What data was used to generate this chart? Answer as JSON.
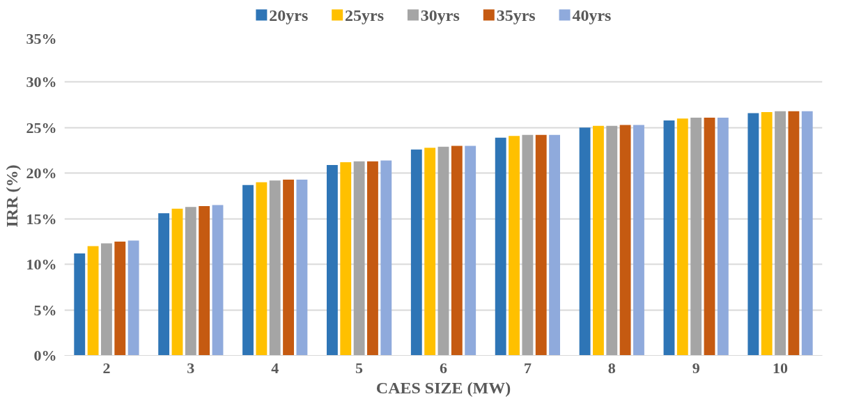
{
  "chart_data": {
    "type": "bar",
    "xlabel": "CAES SIZE (MW)",
    "ylabel": "IRR (%)",
    "categories": [
      "2",
      "3",
      "4",
      "5",
      "6",
      "7",
      "8",
      "9",
      "10"
    ],
    "series": [
      {
        "name": "20yrs",
        "color": "#2e75b6",
        "values": [
          11.2,
          15.6,
          18.7,
          20.9,
          22.6,
          23.9,
          25.0,
          25.8,
          26.6
        ]
      },
      {
        "name": "25yrs",
        "color": "#ffc000",
        "values": [
          12.0,
          16.1,
          19.0,
          21.2,
          22.8,
          24.1,
          25.2,
          26.0,
          26.7
        ]
      },
      {
        "name": "30yrs",
        "color": "#a5a5a5",
        "values": [
          12.3,
          16.3,
          19.2,
          21.3,
          22.9,
          24.2,
          25.2,
          26.1,
          26.8
        ]
      },
      {
        "name": "35yrs",
        "color": "#c55a11",
        "values": [
          12.5,
          16.4,
          19.3,
          21.3,
          23.0,
          24.2,
          25.3,
          26.1,
          26.8
        ]
      },
      {
        "name": "40yrs",
        "color": "#8faadc",
        "values": [
          12.6,
          16.5,
          19.3,
          21.4,
          23.0,
          24.2,
          25.3,
          26.1,
          26.8
        ]
      }
    ],
    "ylim": [
      0,
      35
    ],
    "yticks": [
      {
        "value": 0,
        "label": "0%"
      },
      {
        "value": 5,
        "label": "5%"
      },
      {
        "value": 10,
        "label": "10%"
      },
      {
        "value": 15,
        "label": "15%"
      },
      {
        "value": 20,
        "label": "20%"
      },
      {
        "value": 25,
        "label": "25%"
      },
      {
        "value": 30,
        "label": "30%"
      },
      {
        "value": 35,
        "label": "35%"
      }
    ],
    "grid": "y",
    "legend": "top"
  }
}
